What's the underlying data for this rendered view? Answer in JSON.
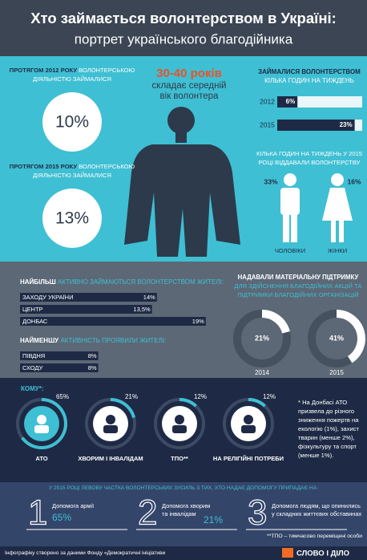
{
  "header": {
    "title": "Хто займається волонтерством в Україні:",
    "subtitle": "портрет українського благодійника"
  },
  "share": [
    {
      "lead": "ПРОТЯГОМ 2012 РОКУ",
      "rest": "ВОЛОНТЕРСЬКОЮ",
      "line2": "ДІЯЛЬНІСТЮ ЗАЙМАЛИСЯ",
      "value": "10%"
    },
    {
      "lead": "ПРОТЯГОМ 2015 РОКУ",
      "rest": "ВОЛОНТЕРСЬКОЮ",
      "line2": "ДІЯЛЬНІСТЮ ЗАЙМАЛИСЯ",
      "value": "13%"
    }
  ],
  "age": {
    "value": "30-40 років",
    "lines": [
      "складає середній",
      "вік волонтера"
    ]
  },
  "hours": {
    "lead": "ЗАЙМАЛИСЯ ВОЛОНТЕРСТВОМ",
    "sub": "КІЛЬКА ГОДИН НА ТИЖДЕНЬ",
    "rows": [
      {
        "year": "2012",
        "value": 6,
        "value_label": "6%"
      },
      {
        "year": "2015",
        "value": 23,
        "value_label": "23%"
      }
    ]
  },
  "gender": {
    "lines": [
      "КІЛЬКА ГОДИН НА ТИЖДЕНЬ У 2015",
      "РОЦІ ВІДДАВАЛИ ВОЛОНТЕРСТВУ"
    ],
    "men": {
      "value": "33%",
      "label": "ЧОЛОВІКИ"
    },
    "women": {
      "value": "16%",
      "label": "ЖІНКИ"
    }
  },
  "regions": {
    "most": {
      "lead": "НАЙБІЛЬШ",
      "rest": "АКТИВНО ЗАЙМАЮТЬСЯ ВОЛОНТЕРСТВОМ ЖИТЕЛІ:",
      "rows": [
        {
          "label": "ЗАХОДУ УКРАЇНИ",
          "value": 14,
          "value_label": "14%"
        },
        {
          "label": "ЦЕНТР",
          "value": 13.5,
          "value_label": "13,5%"
        },
        {
          "label": "ДОНБАС",
          "value": 19,
          "value_label": "19%"
        }
      ]
    },
    "least": {
      "lead": "НАЙМЕНШУ",
      "rest": "АКТИВНІСТЬ ПРОЯВИЛИ ЖИТЕЛІ:",
      "rows": [
        {
          "label": "ПІВДНЯ",
          "value": 8,
          "value_label": "8%"
        },
        {
          "label": "СХОДУ",
          "value": 8,
          "value_label": "8%"
        }
      ]
    }
  },
  "material": {
    "lead": "НАДАВАЛИ МАТЕРІАЛЬНУ ПІДТРИМКУ",
    "lines": [
      "ДЛЯ ЗДІЙСНЕННЯ БЛАГОДІЙНИХ АКЦІЙ ТА",
      "ПІДТРИМКИ БЛАГОДІЙНИХ ОРГАНІЗАЦІЙ"
    ],
    "donuts": [
      {
        "year": "2014",
        "value": 21,
        "value_label": "21%"
      },
      {
        "year": "2015",
        "value": 41,
        "value_label": "41%"
      }
    ]
  },
  "recipients": {
    "title": "КОМУ*:",
    "items": [
      {
        "label": "АТО",
        "value": 65,
        "value_label": "65%"
      },
      {
        "label": "ХВОРИМ І ІНВАЛІДАМ",
        "value": 21,
        "value_label": "21%"
      },
      {
        "label": "ТПО**",
        "value": 12,
        "value_label": "12%"
      },
      {
        "label": "НА РЕЛІГІЙНІ ПОТРЕБИ",
        "value": 12,
        "value_label": "12%"
      }
    ],
    "note": [
      "* На Донбасі АТО",
      "призвела до різного",
      "зниження пожертв на",
      "екологію (1%), захист",
      "тварин (менше 2%),",
      "фізкультуру та спорт",
      "(менше 1%)."
    ]
  },
  "priorities": {
    "title": "У 2015 РОЦІ ЛЕВОВУ ЧАСТКА ВОЛОНТЕРСЬКИХ ЗУСИЛЬ З ТИХ, ХТО НАДАЄ ДОПОМОГУ ПРИПАДАЄ НА:",
    "items": [
      {
        "number": 1,
        "lines": [
          "Допомога армії"
        ],
        "value": "65%"
      },
      {
        "number": 2,
        "lines": [
          "Допомога хворим",
          "та інвалідам"
        ],
        "value": "21%"
      },
      {
        "number": 3,
        "lines": [
          "Допомога людям, що опинились",
          "у складних життєвих обставинах"
        ]
      }
    ]
  },
  "tpo_note": "**ТПО – тимчасово переміщені особи",
  "footer": {
    "source": "Інфографіку створено за даними Фонду «Демократичні ініціативи",
    "logo": "СЛОВО І ДІЛО"
  }
}
